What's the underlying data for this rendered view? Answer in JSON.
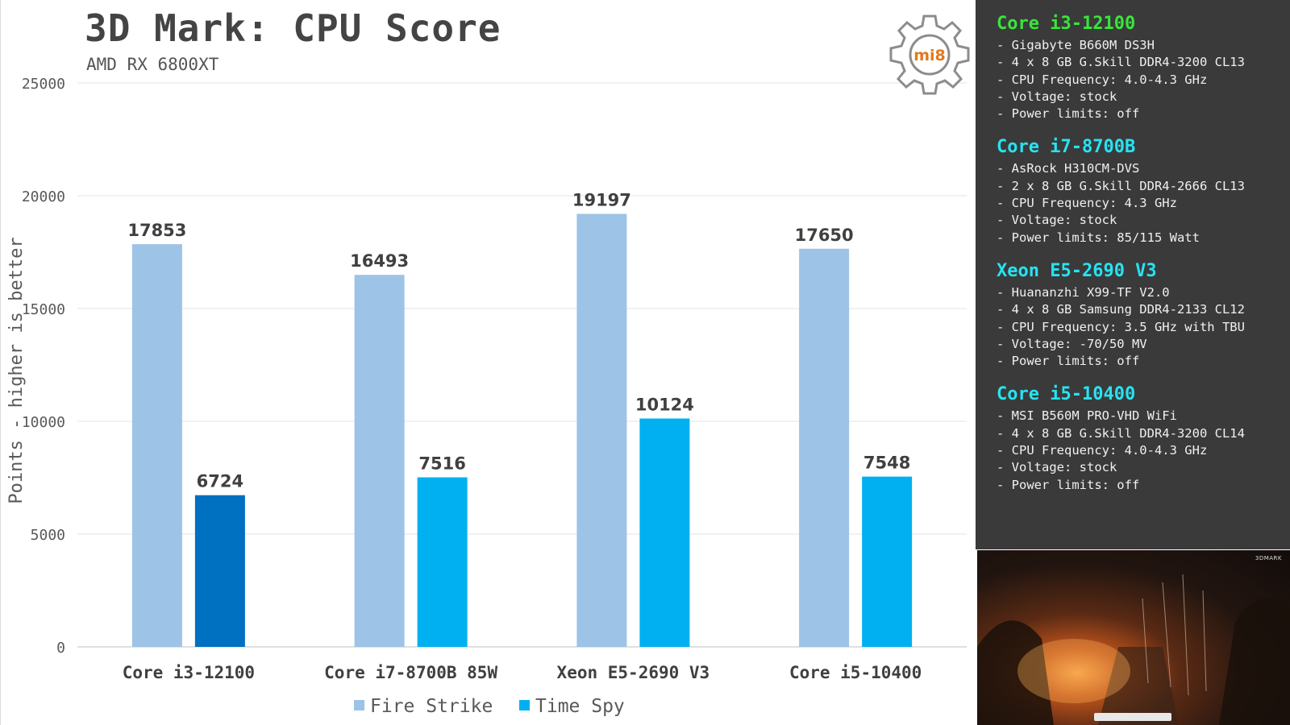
{
  "chart_data": {
    "type": "bar",
    "title": "3D Mark: CPU Score",
    "subtitle": "AMD RX 6800XT",
    "ylabel": "Points - higher is better",
    "xlabel": "",
    "ylim": [
      0,
      25000
    ],
    "yticks": [
      0,
      5000,
      10000,
      15000,
      20000,
      25000
    ],
    "grid": true,
    "legend_position": "bottom",
    "categories": [
      "Core i3-12100",
      "Core i7-8700B 85W",
      "Xeon E5-2690 V3",
      "Core i5-10400"
    ],
    "series": [
      {
        "name": "Fire Strike",
        "color": "#9dc3e6",
        "values": [
          17853,
          16493,
          19197,
          17650
        ]
      },
      {
        "name": "Time Spy",
        "color": "#00b0f0",
        "values": [
          6724,
          7516,
          10124,
          7548
        ]
      }
    ],
    "highlight": {
      "series": 1,
      "index": 0,
      "color": "#0070c0"
    }
  },
  "logo": {
    "text": "mi8"
  },
  "specs": [
    {
      "name": "Core i3-12100",
      "color": "#39e53b",
      "lines": [
        "- Gigabyte B660M DS3H",
        "- 4 x 8 GB G.Skill DDR4-3200 CL13",
        "- CPU Frequency: 4.0-4.3 GHz",
        "- Voltage: stock",
        "- Power limits: off"
      ]
    },
    {
      "name": "Core i7-8700B",
      "color": "#27e3f2",
      "lines": [
        "- AsRock H310CM-DVS",
        "- 2 x 8 GB G.Skill DDR4-2666 CL13",
        "- CPU Frequency: 4.3 GHz",
        "- Voltage: stock",
        "- Power limits: 85/115 Watt"
      ]
    },
    {
      "name": "Xeon E5-2690 V3",
      "color": "#27e3f2",
      "lines": [
        "- Huananzhi X99-TF V2.0",
        "- 4 x 8 GB Samsung DDR4-2133 CL12",
        "- CPU Frequency: 3.5 GHz with TBU",
        "- Voltage: -70/50 MV",
        "- Power limits: off"
      ]
    },
    {
      "name": "Core i5-10400",
      "color": "#27e3f2",
      "lines": [
        "- MSI B560M PRO-VHD WiFi",
        "- 4 x 8 GB G.Skill DDR4-3200 CL14",
        "- CPU Frequency: 4.0-4.3 GHz",
        "- Voltage: stock",
        "- Power limits: off"
      ]
    }
  ],
  "video": {
    "brand": "3DMARK"
  }
}
